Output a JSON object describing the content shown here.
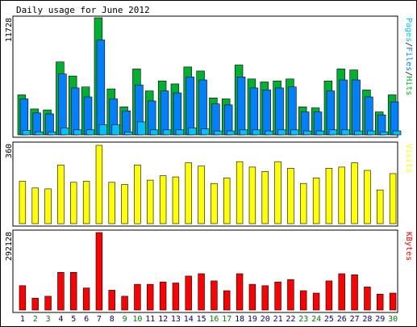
{
  "chart_data": {
    "type": "bar",
    "title": "Daily usage for June 2012",
    "categories": [
      "1",
      "2",
      "3",
      "4",
      "5",
      "6",
      "7",
      "8",
      "9",
      "10",
      "11",
      "12",
      "13",
      "14",
      "15",
      "16",
      "17",
      "18",
      "19",
      "20",
      "21",
      "22",
      "23",
      "24",
      "25",
      "26",
      "27",
      "28",
      "29",
      "30"
    ],
    "weekend_days": [
      "2",
      "3",
      "9",
      "10",
      "16",
      "17",
      "23",
      "24",
      "30"
    ],
    "colors": {
      "hits": "#00b030",
      "files": "#0080ff",
      "pages": "#00c0ff",
      "visits": "#ffff00",
      "kbytes": "#ff0000",
      "weekday_label": "#000080",
      "weekend_label": "#008000",
      "bar_outline": "#000000"
    },
    "panels": [
      {
        "id": "hits-panel",
        "ymax_label": "11728",
        "ymax": 11728,
        "legend": [
          {
            "text": "Pages",
            "color": "#00c0ff"
          },
          {
            "text": "/",
            "color": "#000000"
          },
          {
            "text": "Files",
            "color": "#0080ff"
          },
          {
            "text": "/",
            "color": "#000000"
          },
          {
            "text": "Hits",
            "color": "#00b030"
          }
        ],
        "series": [
          {
            "name": "Hits",
            "color": "#00b030",
            "values": [
              4000,
              2600,
              2500,
              7300,
              5900,
              4800,
              11728,
              4600,
              2800,
              6600,
              4400,
              5400,
              5100,
              6800,
              6400,
              3700,
              3600,
              7000,
              5600,
              5300,
              5400,
              5600,
              2800,
              2700,
              5400,
              6600,
              6500,
              4500,
              2300,
              4000
            ]
          },
          {
            "name": "Files",
            "color": "#0080ff",
            "values": [
              3600,
              2200,
              2100,
              6100,
              4700,
              3800,
              9500,
              3600,
              2400,
              5000,
              3400,
              4400,
              4200,
              5800,
              5500,
              3100,
              3000,
              5800,
              4700,
              4500,
              4700,
              4800,
              2300,
              2300,
              4400,
              5500,
              5500,
              3800,
              2000,
              3300
            ]
          },
          {
            "name": "Pages",
            "color": "#00c0ff",
            "values": [
              450,
              300,
              300,
              700,
              500,
              500,
              1000,
              1000,
              300,
              1300,
              500,
              500,
              500,
              700,
              600,
              400,
              400,
              500,
              500,
              400,
              500,
              500,
              400,
              400,
              500,
              500,
              400,
              400,
              300,
              400
            ]
          }
        ]
      },
      {
        "id": "visits-panel",
        "ymax_label": "360",
        "ymax": 360,
        "legend": [
          {
            "text": "Visits",
            "color": "#ffff00"
          }
        ],
        "series": [
          {
            "name": "Visits",
            "color": "#ffff00",
            "values": [
              195,
              164,
              160,
              270,
              190,
              195,
              360,
              190,
              180,
              270,
              200,
              220,
              215,
              280,
              265,
              185,
              210,
              285,
              260,
              240,
              285,
              255,
              185,
              210,
              255,
              260,
              280,
              245,
              155,
              230
            ]
          }
        ]
      },
      {
        "id": "kbytes-panel",
        "ymax_label": "292128",
        "ymax": 292128,
        "legend": [
          {
            "text": "KBytes",
            "color": "#ff0000"
          }
        ],
        "series": [
          {
            "name": "KBytes",
            "color": "#ff0000",
            "values": [
              92000,
              45000,
              52000,
              142000,
              142000,
              83000,
              292128,
              75000,
              52000,
              97000,
              97000,
              106000,
              102000,
              128000,
              137000,
              110000,
              73000,
              137000,
              97000,
              92000,
              106000,
              115000,
              73000,
              64000,
              110000,
              137000,
              133000,
              87000,
              60000,
              64000
            ]
          }
        ]
      }
    ]
  }
}
